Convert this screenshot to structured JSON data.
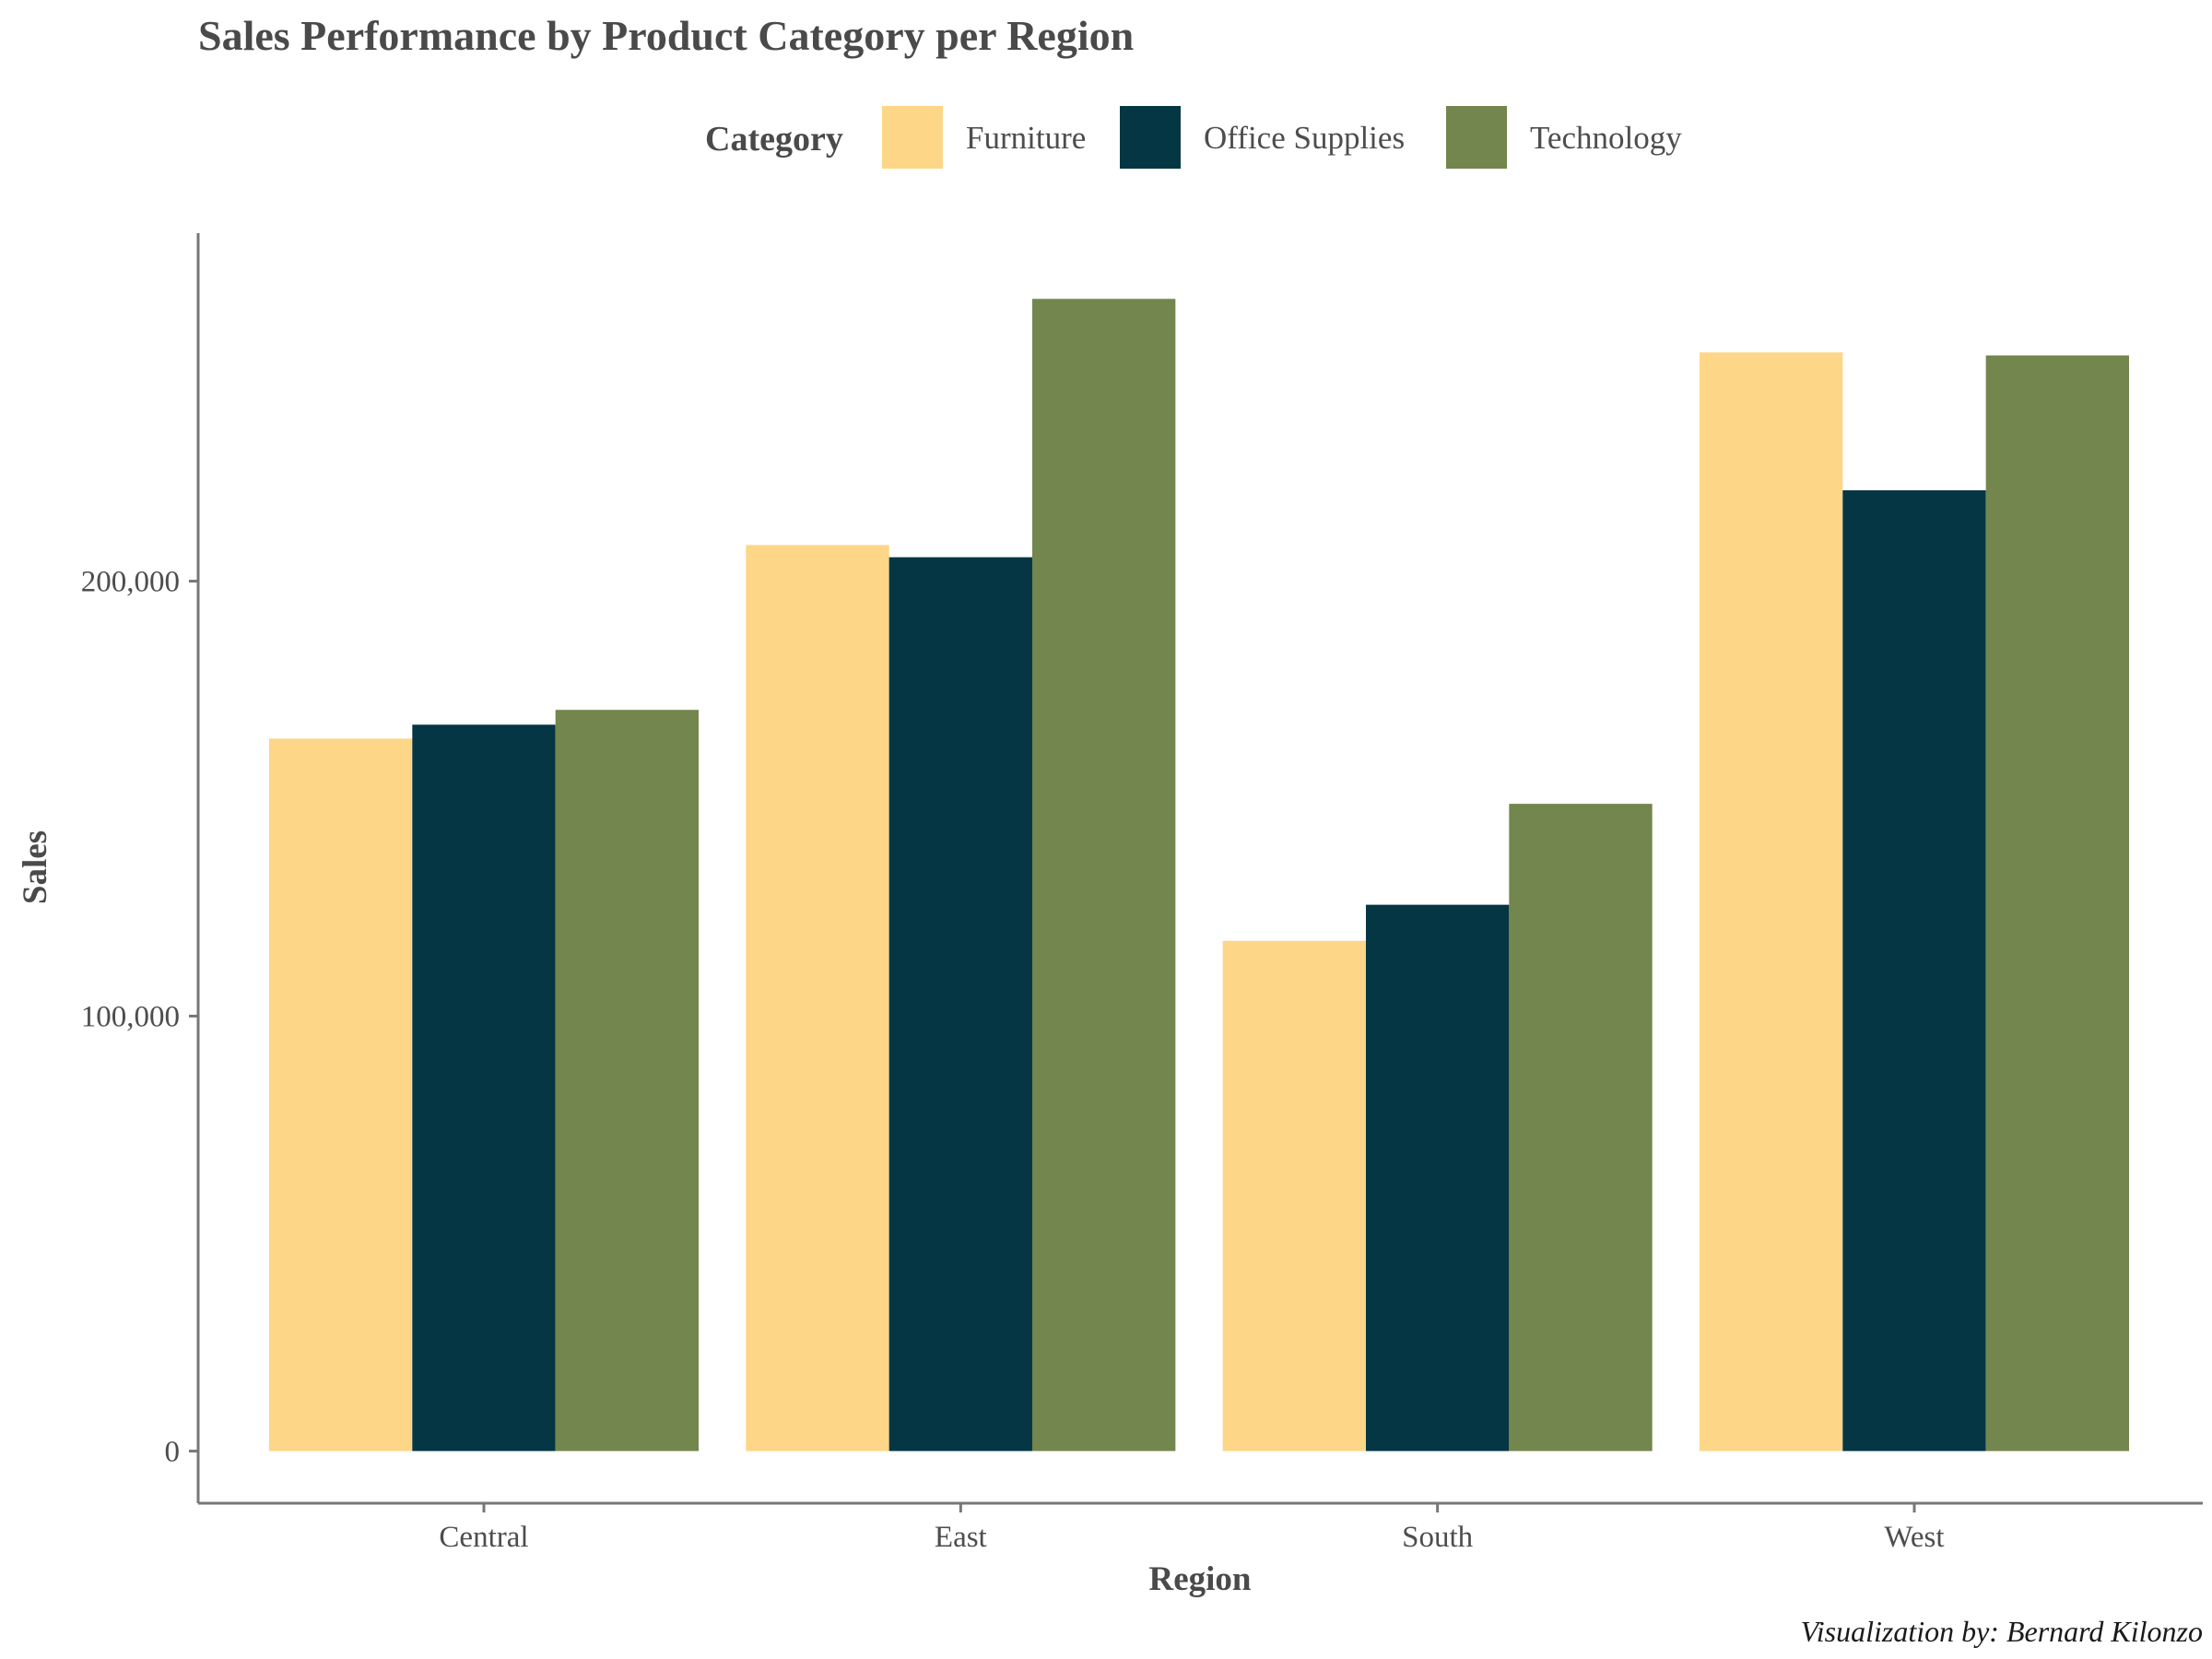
{
  "chart_data": {
    "type": "bar",
    "title": "Sales Performance by Product Category per Region",
    "xlabel": "Region",
    "ylabel": "Sales",
    "legend_title": "Category",
    "legend_position": "top",
    "caption": "Visualization by: Bernard Kilonzo",
    "categories": [
      "Central",
      "East",
      "South",
      "West"
    ],
    "series": [
      {
        "name": "Furniture",
        "color": "#FDD688",
        "values": [
          163800,
          208300,
          117300,
          252600
        ]
      },
      {
        "name": "Office Supplies",
        "color": "#053644",
        "values": [
          167000,
          205500,
          125600,
          220900
        ]
      },
      {
        "name": "Technology",
        "color": "#73864D",
        "values": [
          170400,
          264900,
          148800,
          251900
        ]
      }
    ],
    "yticks": [
      0,
      100000,
      200000
    ],
    "ytick_labels": [
      "0",
      "100,000",
      "200,000"
    ],
    "ylim": [
      -12000,
      280000
    ],
    "grid": false
  }
}
